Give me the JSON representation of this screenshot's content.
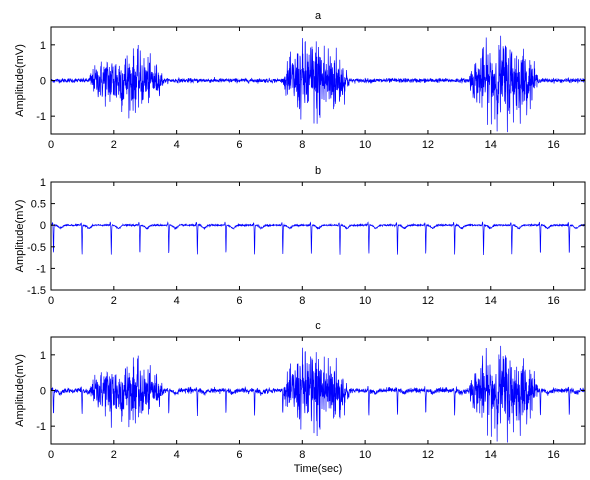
{
  "colors": {
    "signal": "#0000ff",
    "axes": "#000000",
    "background": "#ffffff"
  },
  "chart_data": [
    {
      "type": "line",
      "title": "a",
      "xlabel": "",
      "ylabel": "Amplitude(mV)",
      "xlim": [
        0,
        17
      ],
      "ylim": [
        -1.5,
        1.5
      ],
      "xticks": [
        0,
        2,
        4,
        6,
        8,
        10,
        12,
        14,
        16
      ],
      "yticks": [
        -1,
        0,
        1
      ],
      "grid": false,
      "series": [
        {
          "signal_model": "emg",
          "baseline_noise": 0.03,
          "bursts": [
            {
              "start": 1.2,
              "end": 3.6,
              "peak_amplitude": 1.0
            },
            {
              "start": 7.4,
              "end": 9.5,
              "peak_amplitude": 1.45
            },
            {
              "start": 13.3,
              "end": 15.5,
              "peak_amplitude": 1.4
            }
          ]
        }
      ]
    },
    {
      "type": "line",
      "title": "b",
      "xlabel": "",
      "ylabel": "Amplitude(mV)",
      "xlim": [
        0,
        17
      ],
      "ylim": [
        -1.5,
        1
      ],
      "xticks": [
        0,
        2,
        4,
        6,
        8,
        10,
        12,
        14,
        16
      ],
      "yticks": [
        -1.5,
        -1,
        -0.5,
        0,
        0.5,
        1
      ],
      "grid": false,
      "series": [
        {
          "signal_model": "ecg",
          "baseline": 0.0,
          "beat_times": [
            0.08,
            0.99,
            1.92,
            2.83,
            3.75,
            4.66,
            5.57,
            6.48,
            7.38,
            8.29,
            9.2,
            10.12,
            11.03,
            11.93,
            12.85,
            13.77,
            14.67,
            15.58,
            16.5
          ],
          "beat_depth": -0.68
        }
      ]
    },
    {
      "type": "line",
      "title": "c",
      "xlabel": "Time(sec)",
      "ylabel": "Amplitude(mV)",
      "xlim": [
        0,
        17
      ],
      "ylim": [
        -1.5,
        1.5
      ],
      "xticks": [
        0,
        2,
        4,
        6,
        8,
        10,
        12,
        14,
        16
      ],
      "yticks": [
        -1,
        0,
        1
      ],
      "grid": false,
      "series": [
        {
          "signal_model": "sum_of_a_and_b"
        }
      ]
    }
  ]
}
